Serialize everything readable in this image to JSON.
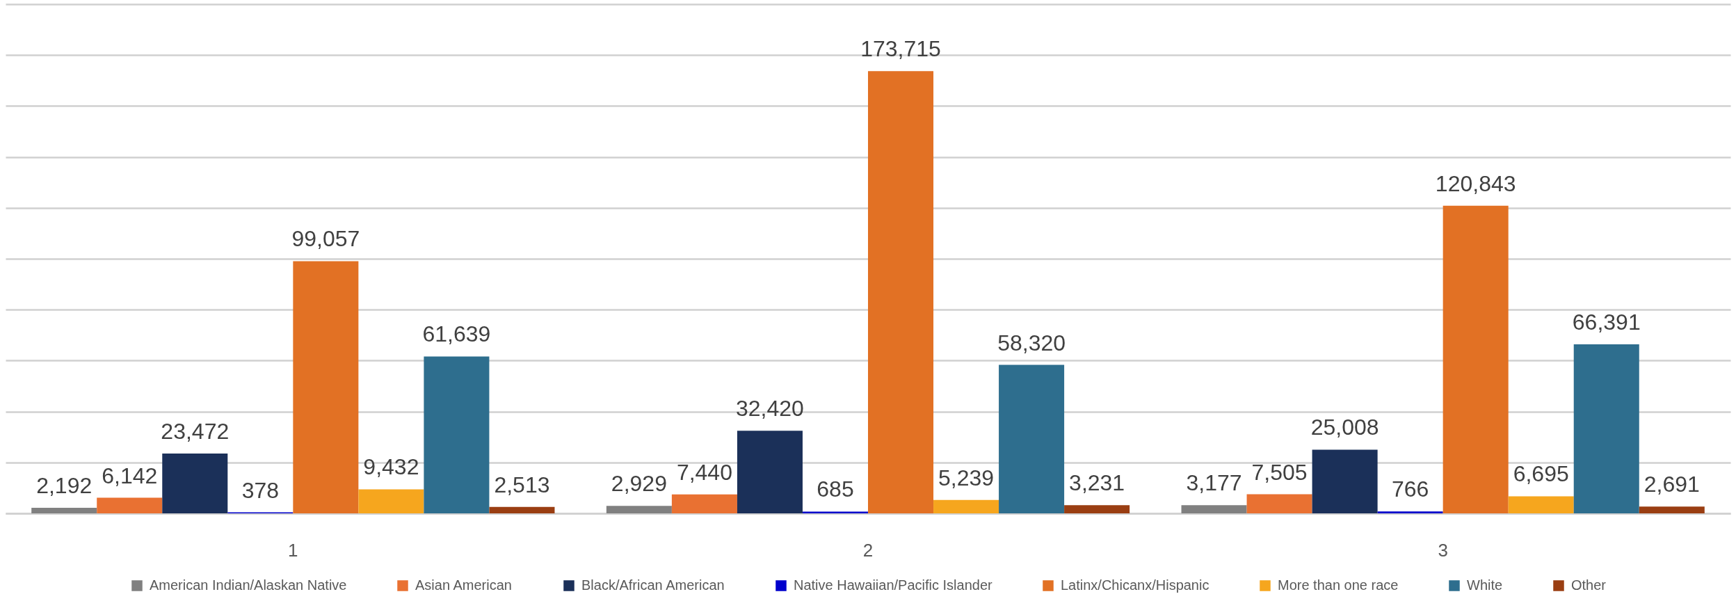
{
  "chart_data": {
    "type": "bar",
    "categories": [
      "1",
      "2",
      "3"
    ],
    "series": [
      {
        "name": "American Indian/Alaskan Native",
        "color": "#808080",
        "values": [
          2192,
          2929,
          3177
        ],
        "value_labels": [
          "2,192",
          "2,929",
          "3,177"
        ]
      },
      {
        "name": "Asian American",
        "color": "#e97132",
        "values": [
          6142,
          7440,
          7505
        ],
        "value_labels": [
          "6,142",
          "7,440",
          "7,505"
        ]
      },
      {
        "name": "Black/African American",
        "color": "#1b3059",
        "values": [
          23472,
          32420,
          25008
        ],
        "value_labels": [
          "23,472",
          "32,420",
          "25,008"
        ]
      },
      {
        "name": "Native Hawaiian/Pacific Islander",
        "color": "#0000cc",
        "values": [
          378,
          685,
          766
        ],
        "value_labels": [
          "378",
          "685",
          "766"
        ]
      },
      {
        "name": "Latinx/Chicanx/Hispanic",
        "color": "#e27124",
        "values": [
          99057,
          173715,
          120843
        ],
        "value_labels": [
          "99,057",
          "173,715",
          "120,843"
        ]
      },
      {
        "name": "More than one race",
        "color": "#f6a61e",
        "values": [
          9432,
          5239,
          6695
        ],
        "value_labels": [
          "9,432",
          "5,239",
          "6,695"
        ]
      },
      {
        "name": "White",
        "color": "#2e6e8e",
        "values": [
          61639,
          58320,
          66391
        ],
        "value_labels": [
          "61,639",
          "58,320",
          "66,391"
        ]
      },
      {
        "name": "Other",
        "color": "#9a3e12",
        "values": [
          2513,
          3231,
          2691
        ],
        "value_labels": [
          "2,513",
          "3,231",
          "2,691"
        ]
      }
    ],
    "ylim": [
      0,
      200000
    ],
    "yticks": [
      0,
      20000,
      40000,
      60000,
      80000,
      100000,
      120000,
      140000,
      160000,
      180000,
      200000
    ],
    "grid": "y",
    "tick_labels": "x",
    "legend": "bottom"
  }
}
